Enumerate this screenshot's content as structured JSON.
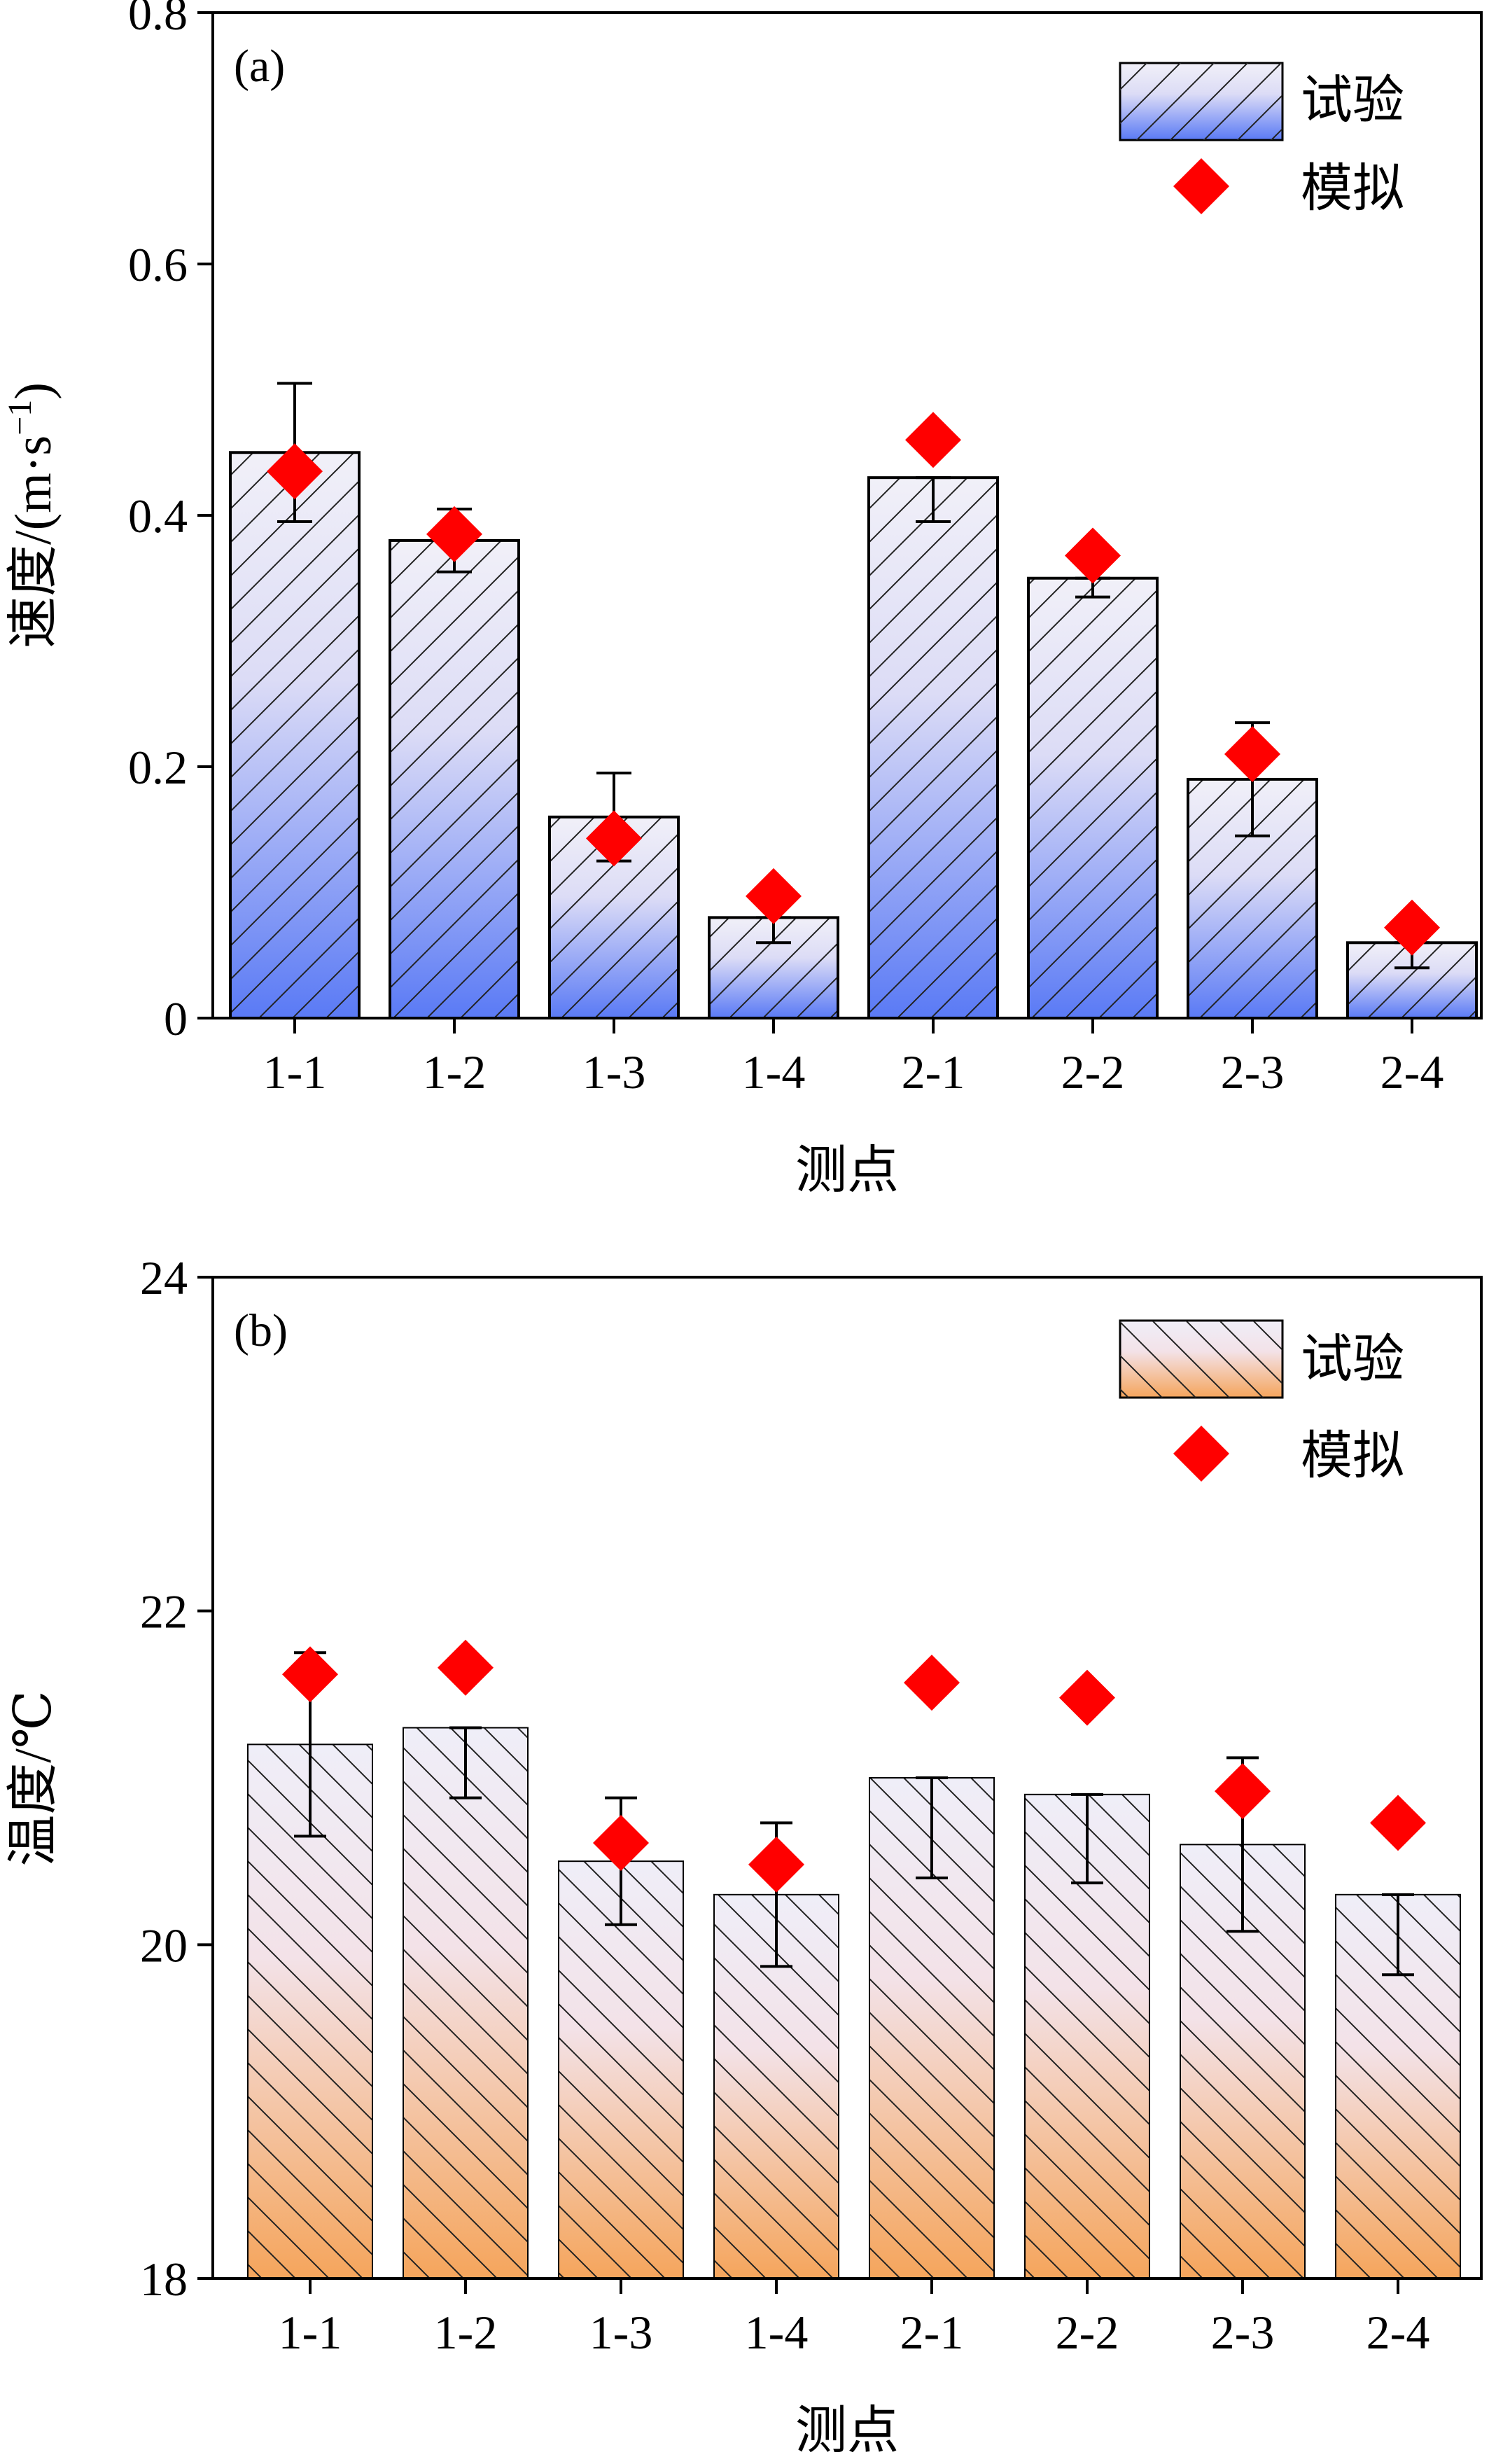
{
  "chart_data": [
    {
      "type": "bar",
      "panel_label": "(a)",
      "categories": [
        "1-1",
        "1-2",
        "1-3",
        "1-4",
        "2-1",
        "2-2",
        "2-3",
        "2-4"
      ],
      "series": [
        {
          "name": "试验",
          "kind": "bar",
          "values": [
            0.45,
            0.38,
            0.16,
            0.08,
            0.43,
            0.35,
            0.19,
            0.06
          ],
          "error_upper": [
            0.505,
            0.405,
            0.195,
            0.08,
            0.43,
            0.35,
            0.235,
            0.06
          ],
          "error_lower": [
            0.395,
            0.355,
            0.125,
            0.06,
            0.395,
            0.335,
            0.145,
            0.04
          ]
        },
        {
          "name": "模拟",
          "kind": "scatter",
          "marker": "diamond",
          "values": [
            0.435,
            0.385,
            0.143,
            0.097,
            0.46,
            0.368,
            0.21,
            0.072
          ]
        }
      ],
      "xlabel": "测点",
      "ylabel": "速度/(m·s",
      "ylabel_sup": "−1",
      "ylabel_close": ")",
      "ylim": [
        0,
        0.8
      ],
      "yticks": [
        "0",
        "0.2",
        "0.4",
        "0.6",
        "0.8"
      ],
      "yticks_values": [
        0,
        0.2,
        0.4,
        0.6,
        0.8
      ],
      "grid": false,
      "legend_position": "top-right",
      "colors": {
        "bar_top": "#f1f0f8",
        "bar_bottom": "#5a7af5",
        "marker": "#ff0000",
        "hatch": "/"
      }
    },
    {
      "type": "bar",
      "panel_label": "(b)",
      "categories": [
        "1-1",
        "1-2",
        "1-3",
        "1-4",
        "2-1",
        "2-2",
        "2-3",
        "2-4"
      ],
      "series": [
        {
          "name": "试验",
          "kind": "bar",
          "values": [
            21.2,
            21.3,
            20.5,
            20.3,
            21.0,
            20.9,
            20.6,
            20.3
          ],
          "error_upper": [
            21.75,
            21.3,
            20.88,
            20.73,
            21.0,
            20.9,
            21.12,
            20.3
          ],
          "error_lower": [
            20.65,
            20.88,
            20.12,
            19.87,
            20.4,
            20.37,
            20.08,
            19.82
          ]
        },
        {
          "name": "模拟",
          "kind": "scatter",
          "marker": "diamond",
          "values": [
            21.62,
            21.66,
            20.61,
            20.48,
            21.57,
            21.48,
            20.92,
            20.73
          ]
        }
      ],
      "xlabel": "测点",
      "ylabel": "温度/℃",
      "ylim": [
        18,
        24
      ],
      "yticks": [
        "18",
        "20",
        "22",
        "24"
      ],
      "yticks_values": [
        18,
        20,
        22,
        24
      ],
      "grid": false,
      "legend_position": "top-right",
      "colors": {
        "bar_top": "#f1f0f8",
        "bar_bottom": "#f5a55c",
        "marker": "#ff0000",
        "hatch": "\\"
      }
    }
  ]
}
